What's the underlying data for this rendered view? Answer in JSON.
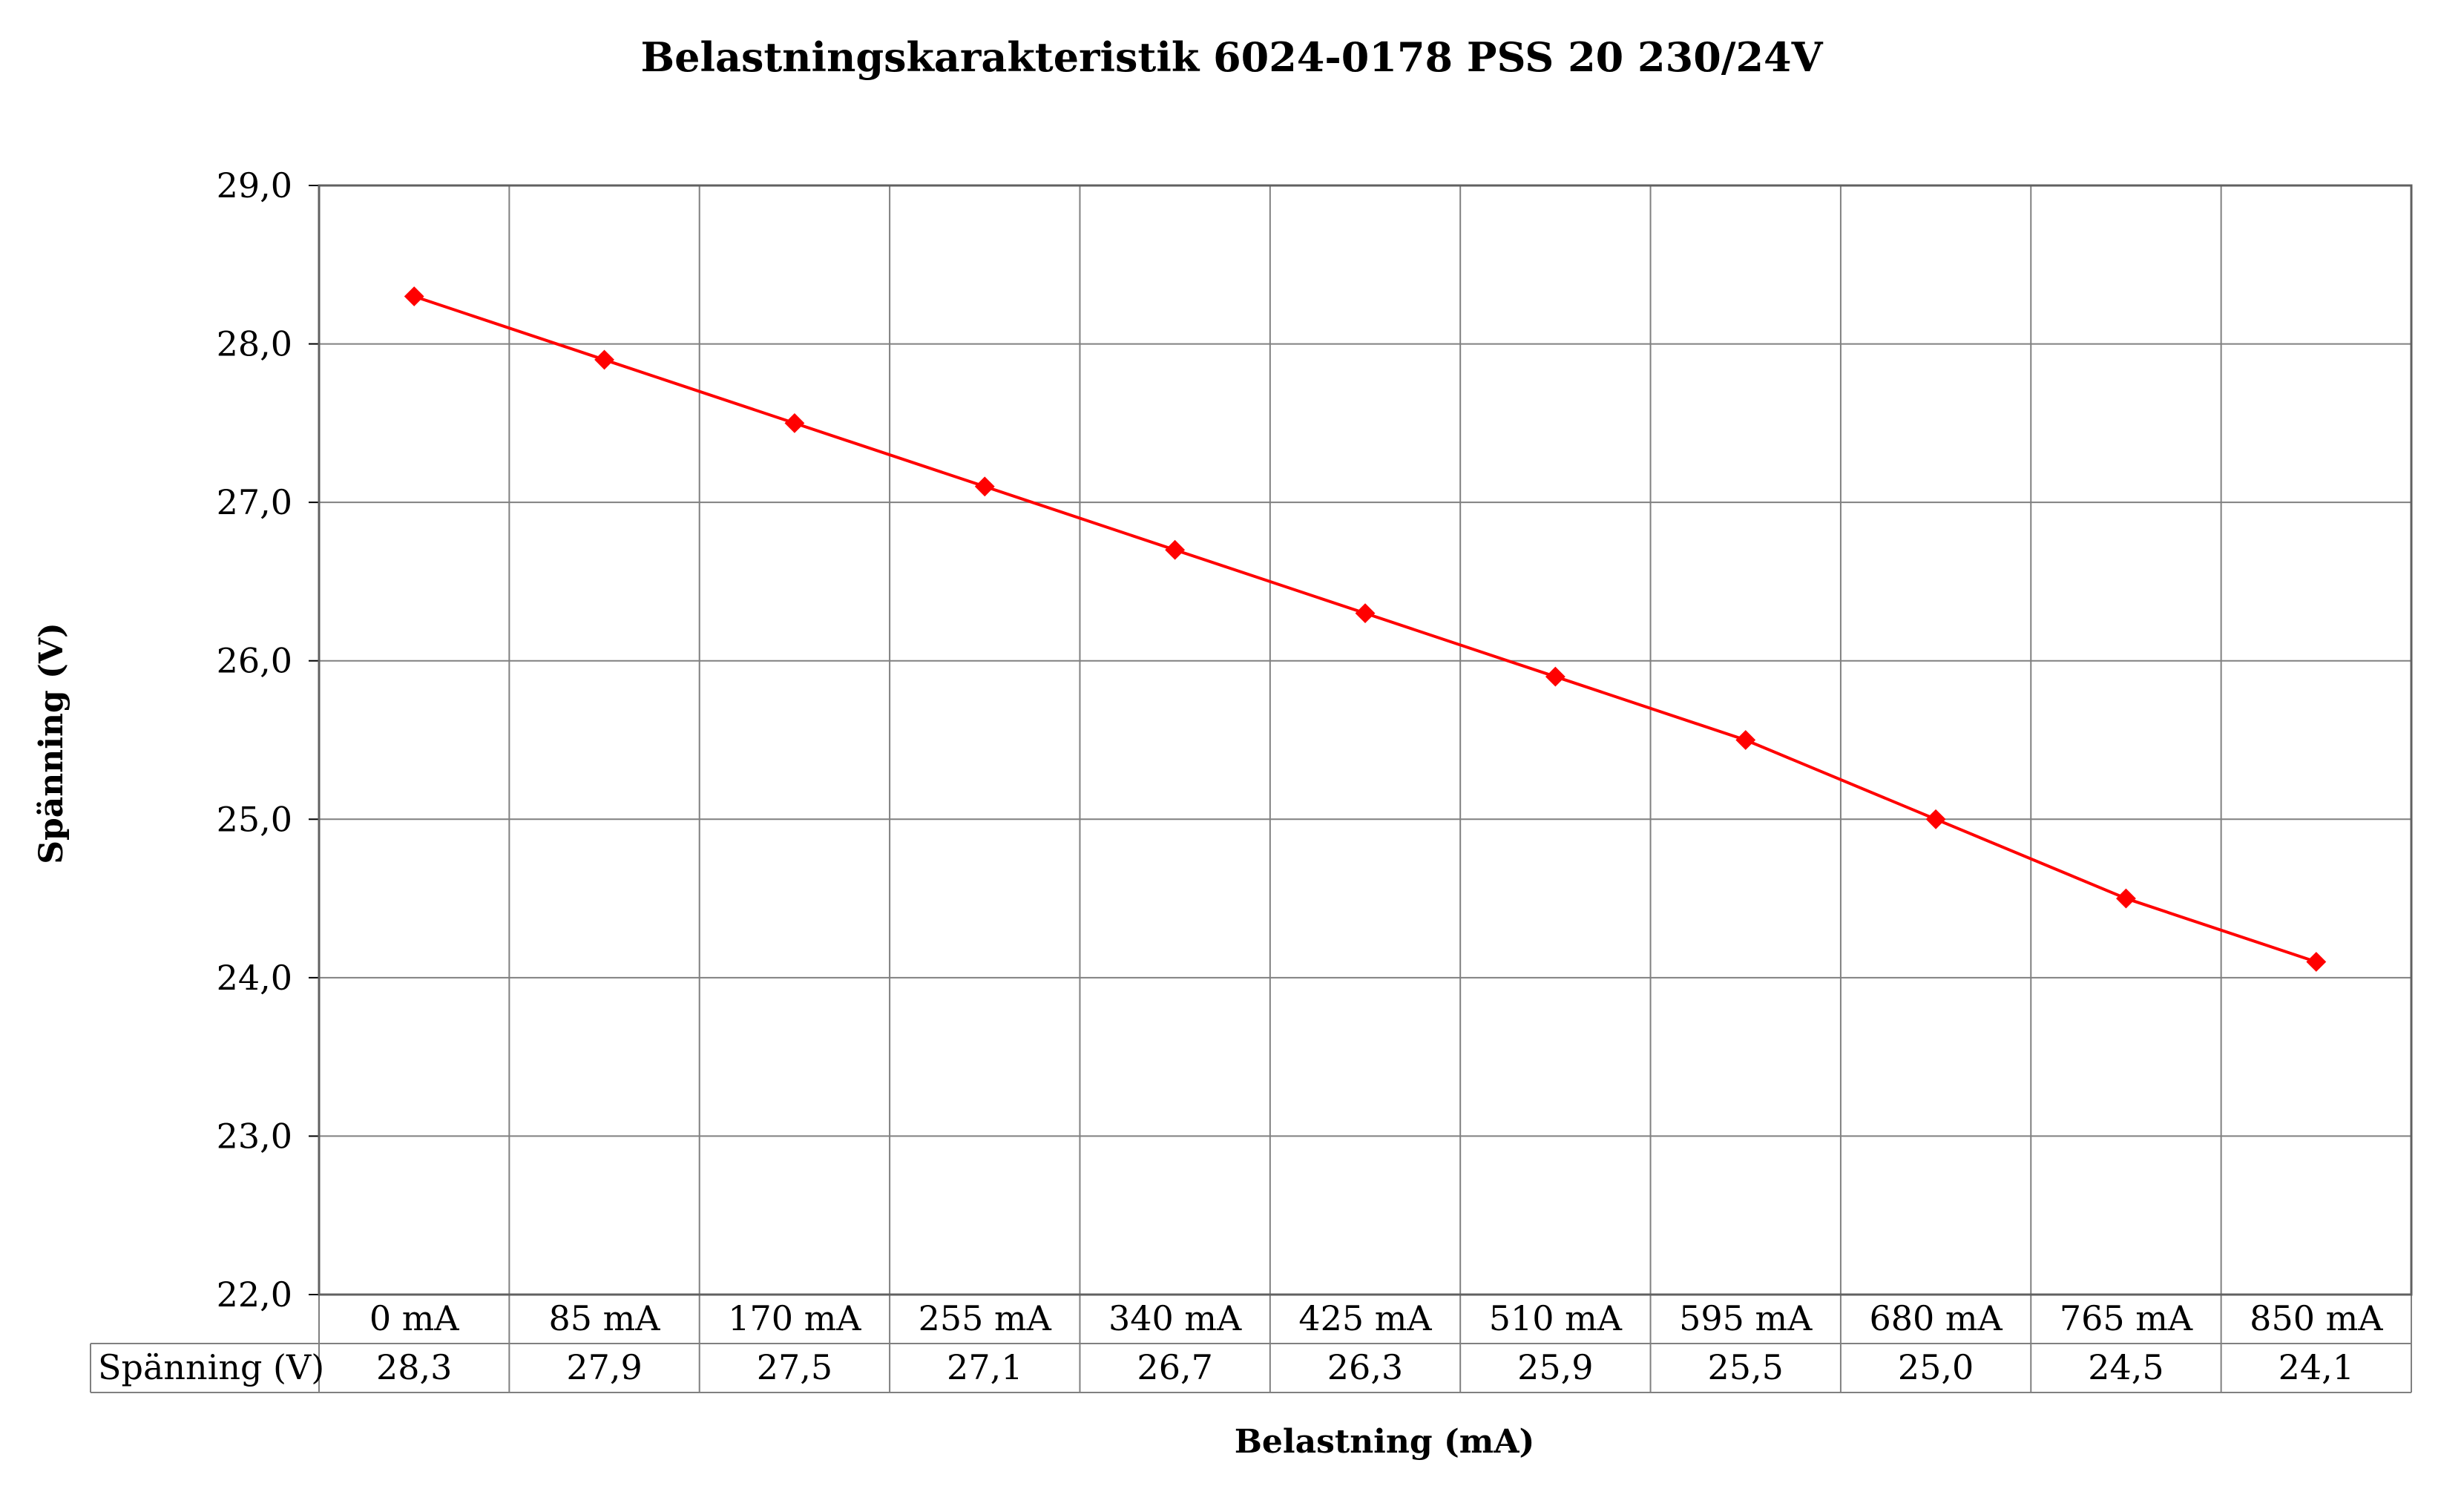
{
  "chart_data": {
    "type": "line",
    "title": "Belastningskarakteristik 6024-0178 PSS 20 230/24V",
    "xlabel": "Belastning (mA)",
    "ylabel": "Spänning (V)",
    "categories": [
      "0 mA",
      "85 mA",
      "170 mA",
      "255 mA",
      "340 mA",
      "425 mA",
      "510 mA",
      "595 mA",
      "680 mA",
      "765 mA",
      "850 mA"
    ],
    "series": [
      {
        "name": "Spänning (V)",
        "values": [
          28.3,
          27.9,
          27.5,
          27.1,
          26.7,
          26.3,
          25.9,
          25.5,
          25.0,
          24.5,
          24.1
        ],
        "value_labels": [
          "28,3",
          "27,9",
          "27,5",
          "27,1",
          "26,7",
          "26,3",
          "25,9",
          "25,5",
          "25,0",
          "24,5",
          "24,1"
        ],
        "color": "#ff0000",
        "marker": "diamond"
      }
    ],
    "ylim": [
      22,
      29
    ],
    "yticks": [
      "22,0",
      "23,0",
      "24,0",
      "25,0",
      "26,0",
      "27,0",
      "28,0",
      "29,0"
    ],
    "grid": true,
    "data_table": true,
    "legend": "none"
  }
}
